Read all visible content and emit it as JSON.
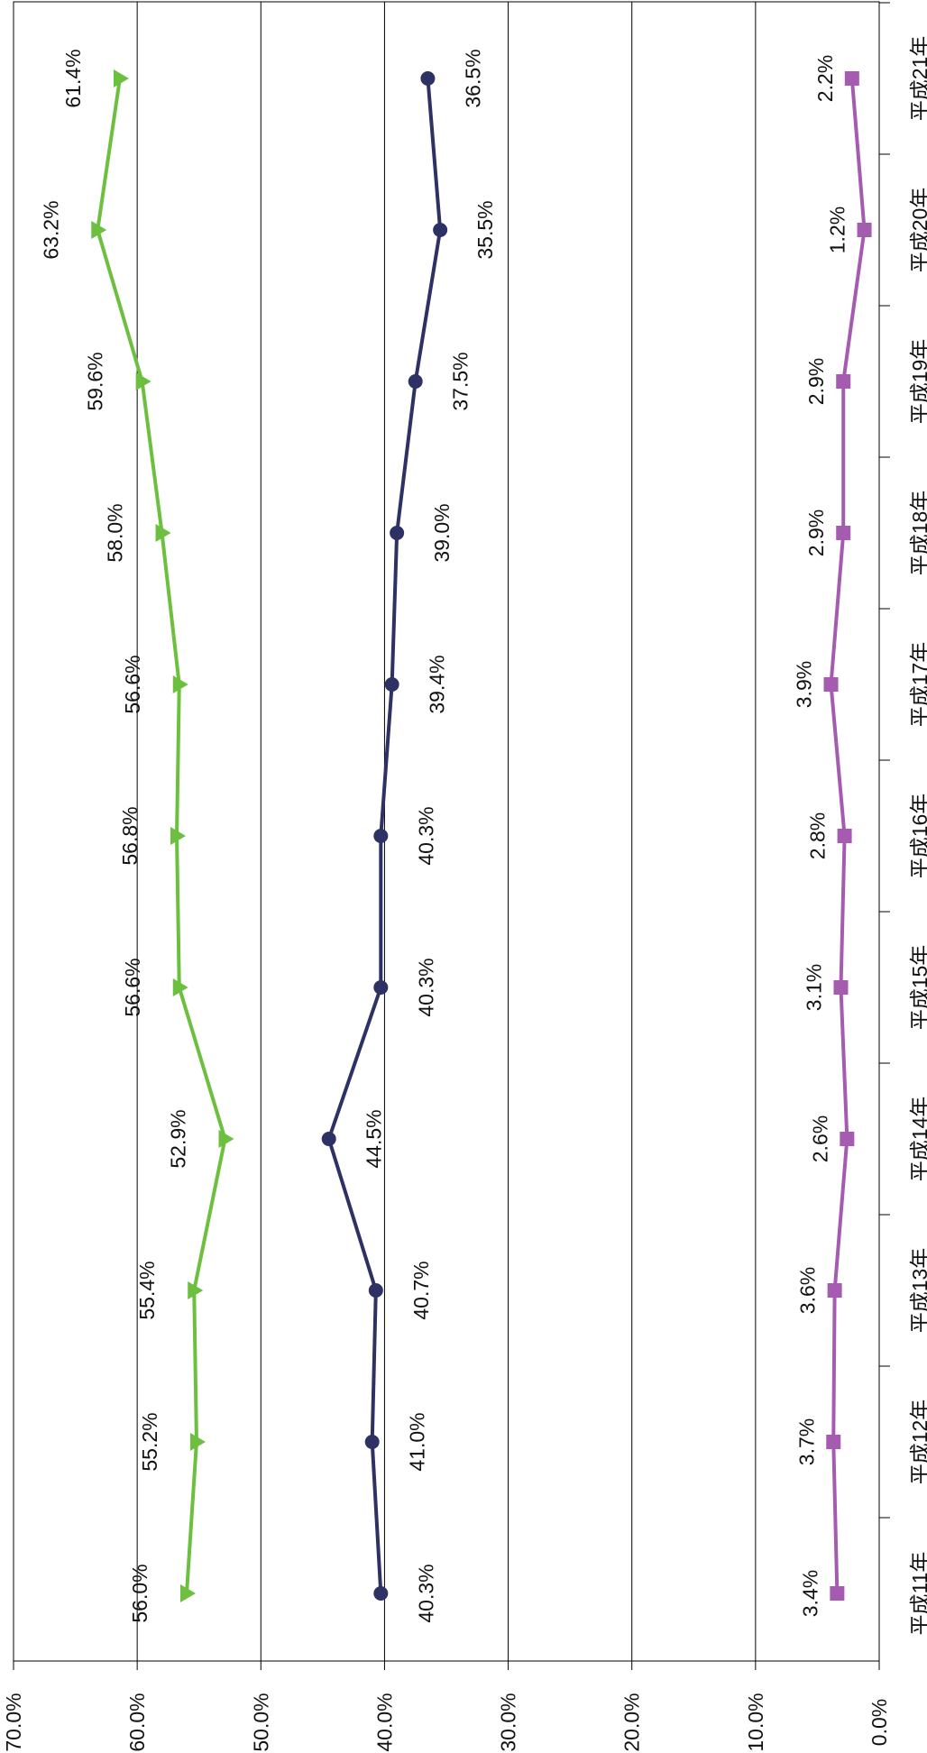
{
  "chart_data": {
    "type": "line",
    "orientation": "rotated-90-clockwise",
    "categories": [
      "平成11年",
      "平成12年",
      "平成13年",
      "平成14年",
      "平成15年",
      "平成16年",
      "平成17年",
      "平成18年",
      "平成19年",
      "平成20年",
      "平成21年"
    ],
    "ylim": [
      0,
      70
    ],
    "y_ticks": [
      "0.0%",
      "10.0%",
      "20.0%",
      "30.0%",
      "40.0%",
      "50.0%",
      "60.0%",
      "70.0%"
    ],
    "grid": true,
    "series": [
      {
        "marker": "triangle",
        "color": "#6dbf3f",
        "values": [
          56.0,
          55.2,
          55.4,
          52.9,
          56.6,
          56.8,
          56.6,
          58.0,
          59.6,
          63.2,
          61.4
        ],
        "labels": [
          "56.0%",
          "55.2%",
          "55.4%",
          "52.9%",
          "56.6%",
          "56.8%",
          "56.6%",
          "58.0%",
          "59.6%",
          "63.2%",
          "61.4%"
        ]
      },
      {
        "marker": "circle",
        "color": "#2e3163",
        "values": [
          40.3,
          41.0,
          40.7,
          44.5,
          40.3,
          40.3,
          39.4,
          39.0,
          37.5,
          35.5,
          36.5
        ],
        "labels": [
          "40.3%",
          "41.0%",
          "40.7%",
          "44.5%",
          "40.3%",
          "40.3%",
          "39.4%",
          "39.0%",
          "37.5%",
          "35.5%",
          "36.5%"
        ]
      },
      {
        "marker": "square",
        "color": "#a45bb0",
        "values": [
          3.4,
          3.7,
          3.6,
          2.6,
          3.1,
          2.8,
          3.9,
          2.9,
          2.9,
          1.2,
          2.2
        ],
        "labels": [
          "3.4%",
          "3.7%",
          "3.6%",
          "2.6%",
          "3.1%",
          "2.8%",
          "3.9%",
          "2.9%",
          "2.9%",
          "1.2%",
          "2.2%"
        ]
      }
    ]
  }
}
